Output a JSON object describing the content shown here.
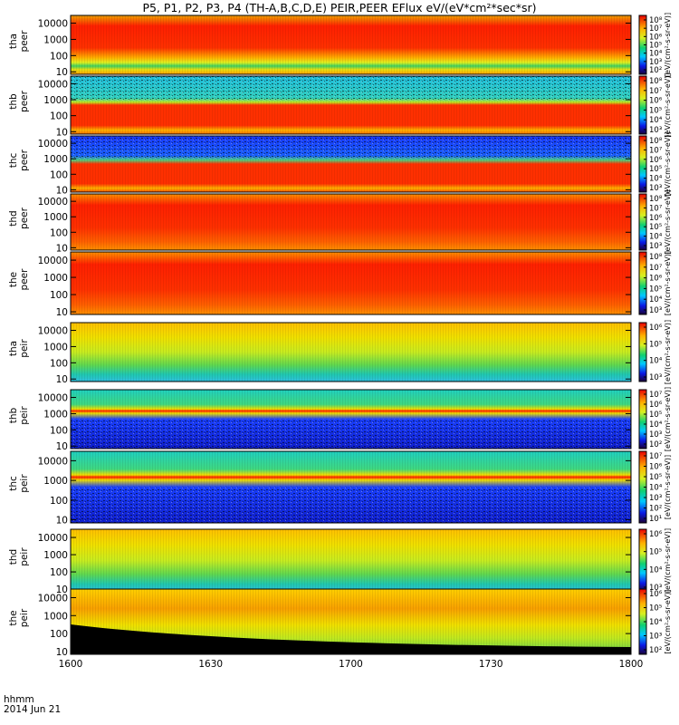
{
  "chart_data": {
    "type": "heatmap",
    "title": "P5, P1, P2, P3, P4 (TH-A,B,C,D,E) PEIR,PEER EFlux eV/(eV*cm²*sec*sr)",
    "x_axis": {
      "ticks": [
        "1600",
        "1630",
        "1700",
        "1730",
        "1800"
      ],
      "label_line1": "hhmm",
      "label_line2": "2014 Jun 21",
      "range": [
        "16:00",
        "18:00"
      ]
    },
    "y_axis": {
      "scale": "log",
      "range_eV": [
        7,
        30000
      ],
      "ticks": [
        "10",
        "100",
        "1000",
        "10000"
      ]
    },
    "colorbar_label": "[eV/(cm²-s-sr-eV)]",
    "panels": [
      {
        "probe": "tha",
        "product": "peer",
        "cbar_ticks": [
          "10⁸",
          "10⁷",
          "10⁶",
          "10⁵",
          "10⁴",
          "10³",
          "10²"
        ]
      },
      {
        "probe": "thb",
        "product": "peer",
        "cbar_ticks": [
          "10⁸",
          "10⁷",
          "10⁶",
          "10⁵",
          "10⁴",
          "10³"
        ]
      },
      {
        "probe": "thc",
        "product": "peer",
        "cbar_ticks": [
          "10⁸",
          "10⁷",
          "10⁶",
          "10⁵",
          "10⁴",
          "10³"
        ]
      },
      {
        "probe": "thd",
        "product": "peer",
        "cbar_ticks": [
          "10⁸",
          "10⁷",
          "10⁶",
          "10⁵",
          "10⁴",
          "10³"
        ]
      },
      {
        "probe": "the",
        "product": "peer",
        "cbar_ticks": [
          "10⁸",
          "10⁷",
          "10⁶",
          "10⁵",
          "10⁴",
          "10³"
        ]
      },
      {
        "probe": "tha",
        "product": "peir",
        "cbar_ticks": [
          "10⁶",
          "10⁵",
          "10⁴",
          "10³"
        ]
      },
      {
        "probe": "thb",
        "product": "peir",
        "cbar_ticks": [
          "10⁷",
          "10⁶",
          "10⁵",
          "10⁴",
          "10³",
          "10²"
        ]
      },
      {
        "probe": "thc",
        "product": "peir",
        "cbar_ticks": [
          "10⁷",
          "10⁶",
          "10⁵",
          "10⁴",
          "10³",
          "10²",
          "10¹"
        ]
      },
      {
        "probe": "thd",
        "product": "peir",
        "cbar_ticks": [
          "10⁶",
          "10⁵",
          "10⁴",
          "10³"
        ]
      },
      {
        "probe": "the",
        "product": "peir",
        "cbar_ticks": [
          "10⁶",
          "10⁵",
          "10⁴",
          "10³",
          "10²"
        ]
      }
    ]
  }
}
